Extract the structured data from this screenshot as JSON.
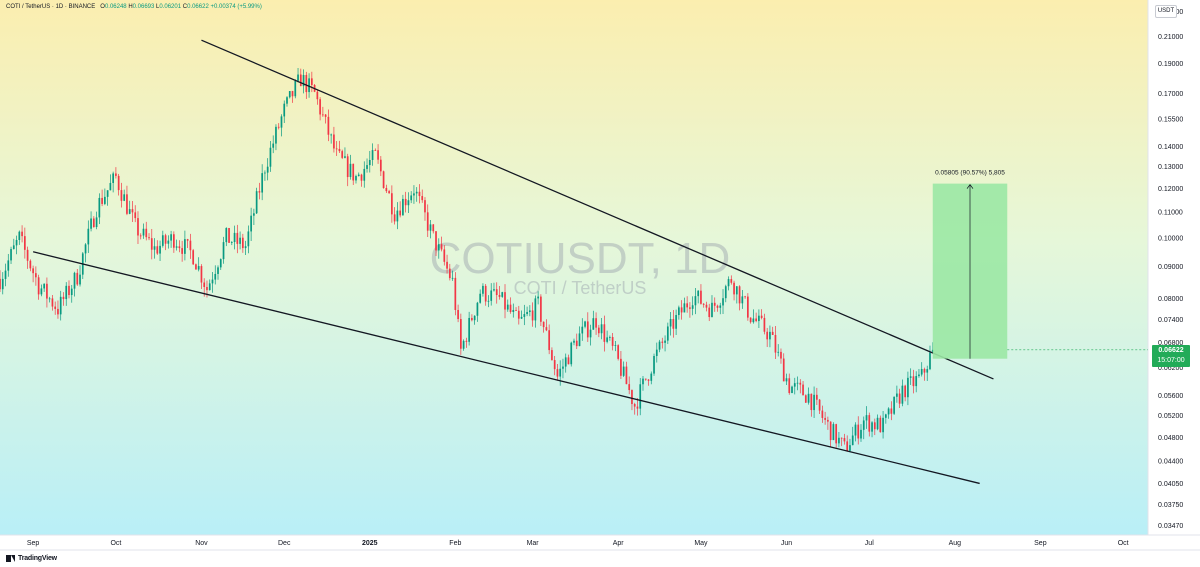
{
  "header": {
    "symbol": "COTI / TetherUS · 1D · BINANCE",
    "o_label": "O",
    "o_value": "0.06248",
    "h_label": "H",
    "h_value": "0.06693",
    "l_label": "L",
    "l_value": "0.06201",
    "c_label": "C",
    "c_value": "0.06622",
    "change": "+0.00374 (+5.99%)"
  },
  "currency_button": "USDT",
  "watermark": {
    "title": "COTIUSDT, 1D",
    "subtitle": "COTI / TetherUS"
  },
  "price_badge": {
    "price": "0.06622",
    "countdown": "15:07:00"
  },
  "measure_label": "0.05805 (90.57%) 5,805",
  "branding": "TradingView",
  "colors": {
    "up": "#089981",
    "down": "#f23645",
    "badge": "#22ab58",
    "measure_fill": "#9be8a4",
    "bg_top": "#fbeeaf",
    "bg_mid": "#e6f7d9",
    "bg_bottom": "#b9eff7"
  },
  "chart_data": {
    "type": "candlestick",
    "price_scale": "log",
    "y_ticks": [
      "0.23000",
      "0.21000",
      "0.19000",
      "0.17000",
      "0.15500",
      "0.14000",
      "0.13000",
      "0.12000",
      "0.11000",
      "0.10000",
      "0.09000",
      "0.08000",
      "0.07400",
      "0.06800",
      "0.06200",
      "0.05600",
      "0.05200",
      "0.04800",
      "0.04400",
      "0.04050",
      "0.03750",
      "0.03470"
    ],
    "x_ticks": [
      "Sep",
      "Oct",
      "Nov",
      "Dec",
      "2025",
      "Feb",
      "Mar",
      "Apr",
      "May",
      "Jun",
      "Jul",
      "Aug",
      "Sep",
      "Oct"
    ],
    "x_tick_dates": [
      "2024-09-01",
      "2024-10-01",
      "2024-11-01",
      "2024-12-01",
      "2025-01-01",
      "2025-02-01",
      "2025-03-01",
      "2025-04-01",
      "2025-05-01",
      "2025-06-01",
      "2025-07-01",
      "2025-08-01",
      "2025-09-01",
      "2025-10-01"
    ],
    "x_range": [
      "2024-08-20",
      "2025-10-10"
    ],
    "y_range": [
      0.0335,
      0.24
    ],
    "series": [
      {
        "type": "close_path",
        "points": [
          [
            "2024-08-20",
            0.086
          ],
          [
            "2024-08-27",
            0.1
          ],
          [
            "2024-09-03",
            0.084
          ],
          [
            "2024-09-10",
            0.077
          ],
          [
            "2024-09-17",
            0.087
          ],
          [
            "2024-09-24",
            0.112
          ],
          [
            "2024-10-01",
            0.125
          ],
          [
            "2024-10-08",
            0.104
          ],
          [
            "2024-10-15",
            0.096
          ],
          [
            "2024-10-22",
            0.1
          ],
          [
            "2024-10-29",
            0.094
          ],
          [
            "2024-11-03",
            0.083
          ],
          [
            "2024-11-10",
            0.1
          ],
          [
            "2024-11-17",
            0.097
          ],
          [
            "2024-11-24",
            0.13
          ],
          [
            "2024-12-01",
            0.16
          ],
          [
            "2024-12-07",
            0.18
          ],
          [
            "2024-12-12",
            0.17
          ],
          [
            "2024-12-20",
            0.135
          ],
          [
            "2024-12-27",
            0.125
          ],
          [
            "2025-01-03",
            0.135
          ],
          [
            "2025-01-10",
            0.11
          ],
          [
            "2025-01-17",
            0.12
          ],
          [
            "2025-01-24",
            0.1
          ],
          [
            "2025-01-31",
            0.085
          ],
          [
            "2025-02-03",
            0.066
          ],
          [
            "2025-02-10",
            0.082
          ],
          [
            "2025-02-17",
            0.08
          ],
          [
            "2025-02-24",
            0.073
          ],
          [
            "2025-03-03",
            0.078
          ],
          [
            "2025-03-10",
            0.06
          ],
          [
            "2025-03-17",
            0.069
          ],
          [
            "2025-03-24",
            0.074
          ],
          [
            "2025-03-31",
            0.065
          ],
          [
            "2025-04-07",
            0.054
          ],
          [
            "2025-04-14",
            0.064
          ],
          [
            "2025-04-21",
            0.073
          ],
          [
            "2025-04-28",
            0.081
          ],
          [
            "2025-05-05",
            0.077
          ],
          [
            "2025-05-12",
            0.086
          ],
          [
            "2025-05-19",
            0.075
          ],
          [
            "2025-05-26",
            0.07
          ],
          [
            "2025-06-02",
            0.058
          ],
          [
            "2025-06-09",
            0.056
          ],
          [
            "2025-06-16",
            0.05
          ],
          [
            "2025-06-22",
            0.046
          ],
          [
            "2025-06-29",
            0.051
          ],
          [
            "2025-07-06",
            0.05
          ],
          [
            "2025-07-13",
            0.057
          ],
          [
            "2025-07-20",
            0.06
          ],
          [
            "2025-07-24",
            0.0662
          ]
        ]
      }
    ],
    "trendlines": [
      {
        "from": [
          "2024-11-01",
          0.207
        ],
        "to": [
          "2025-08-15",
          0.0595
        ]
      },
      {
        "from": [
          "2024-09-01",
          0.095
        ],
        "to": [
          "2025-08-10",
          0.0405
        ]
      }
    ],
    "measure": {
      "from_date": "2025-07-24",
      "to_date": "2025-08-20",
      "from_price": 0.0641,
      "to_price": 0.1221,
      "change": 0.05805,
      "percent": 90.57,
      "ticks": 5805
    },
    "last_price": 0.06622
  }
}
